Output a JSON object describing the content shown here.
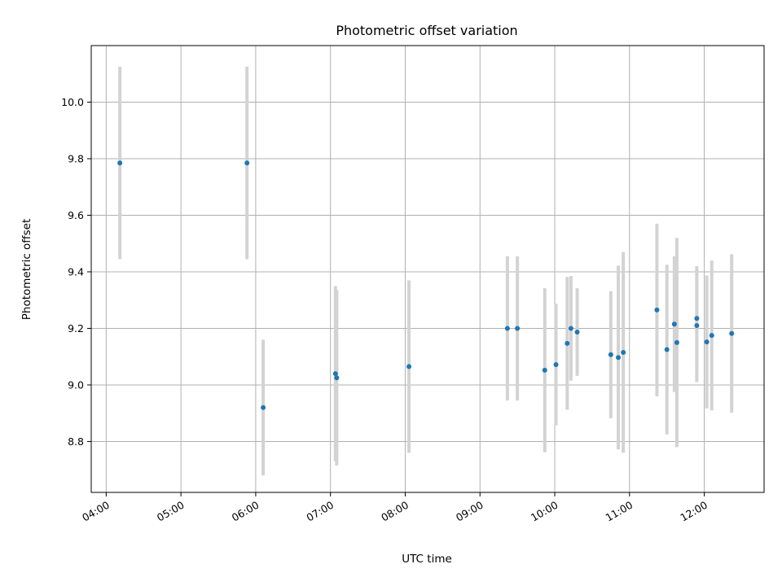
{
  "chart_data": {
    "type": "scatter",
    "title": "Photometric offset variation",
    "xlabel": "UTC time",
    "ylabel": "Photometric offset",
    "x_tick_labels": [
      "04:00",
      "05:00",
      "06:00",
      "07:00",
      "08:00",
      "09:00",
      "10:00",
      "11:00",
      "12:00"
    ],
    "y_tick_labels": [
      "8.8",
      "9.0",
      "9.2",
      "9.4",
      "9.6",
      "9.8",
      "10.0"
    ],
    "xlim": [
      "03:48",
      "12:48"
    ],
    "ylim": [
      8.62,
      10.2
    ],
    "grid": true,
    "legend": false,
    "marker_color": "#1f77b4",
    "errorbar_color": "#d3d3d3",
    "points": [
      {
        "time": "04:11",
        "y": 9.785,
        "err": 0.34
      },
      {
        "time": "05:53",
        "y": 9.785,
        "err": 0.34
      },
      {
        "time": "06:06",
        "y": 8.92,
        "err": 0.24
      },
      {
        "time": "07:04",
        "y": 9.04,
        "err": 0.31
      },
      {
        "time": "07:05",
        "y": 9.025,
        "err": 0.31
      },
      {
        "time": "08:03",
        "y": 9.065,
        "err": 0.305
      },
      {
        "time": "09:22",
        "y": 9.2,
        "err": 0.255
      },
      {
        "time": "09:30",
        "y": 9.2,
        "err": 0.255
      },
      {
        "time": "09:52",
        "y": 9.052,
        "err": 0.29
      },
      {
        "time": "10:01",
        "y": 9.072,
        "err": 0.215
      },
      {
        "time": "10:10",
        "y": 9.147,
        "err": 0.235
      },
      {
        "time": "10:13",
        "y": 9.2,
        "err": 0.185
      },
      {
        "time": "10:18",
        "y": 9.187,
        "err": 0.155
      },
      {
        "time": "10:45",
        "y": 9.107,
        "err": 0.225
      },
      {
        "time": "10:51",
        "y": 9.097,
        "err": 0.325
      },
      {
        "time": "10:55",
        "y": 9.115,
        "err": 0.355
      },
      {
        "time": "11:22",
        "y": 9.265,
        "err": 0.305
      },
      {
        "time": "11:30",
        "y": 9.125,
        "err": 0.3
      },
      {
        "time": "11:36",
        "y": 9.215,
        "err": 0.24
      },
      {
        "time": "11:38",
        "y": 9.15,
        "err": 0.37
      },
      {
        "time": "11:54",
        "y": 9.235,
        "err": 0.185
      },
      {
        "time": "11:54",
        "y": 9.21,
        "err": 0.2
      },
      {
        "time": "12:02",
        "y": 9.152,
        "err": 0.235
      },
      {
        "time": "12:06",
        "y": 9.175,
        "err": 0.265
      },
      {
        "time": "12:22",
        "y": 9.182,
        "err": 0.28
      }
    ]
  }
}
